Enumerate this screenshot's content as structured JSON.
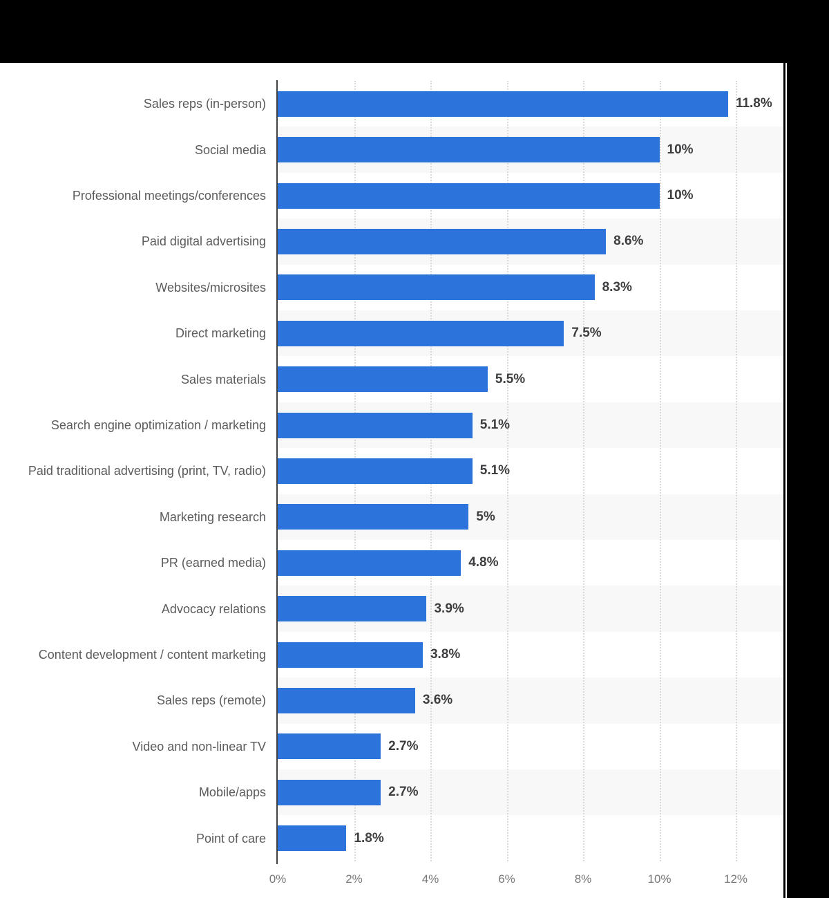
{
  "chart_data": {
    "type": "bar",
    "orientation": "horizontal",
    "title": "",
    "xlabel": "",
    "ylabel": "",
    "categories": [
      "Sales reps (in-person)",
      "Social media",
      "Professional meetings/conferences",
      "Paid digital advertising",
      "Websites/microsites",
      "Direct marketing",
      "Sales materials",
      "Search engine optimization / marketing",
      "Paid traditional advertising (print, TV, radio)",
      "Marketing research",
      "PR (earned media)",
      "Advocacy relations",
      "Content development / content marketing",
      "Sales reps (remote)",
      "Video and non-linear TV",
      "Mobile/apps",
      "Point of care"
    ],
    "values": [
      11.8,
      10,
      10,
      8.6,
      8.3,
      7.5,
      5.5,
      5.1,
      5.1,
      5,
      4.8,
      3.9,
      3.8,
      3.6,
      2.7,
      2.7,
      1.8
    ],
    "value_labels": [
      "11.8%",
      "10%",
      "10%",
      "8.6%",
      "8.3%",
      "7.5%",
      "5.5%",
      "5.1%",
      "5.1%",
      "5%",
      "4.8%",
      "3.9%",
      "3.8%",
      "3.6%",
      "2.7%",
      "2.7%",
      "1.8%"
    ],
    "x_ticks": [
      "0%",
      "2%",
      "4%",
      "6%",
      "8%",
      "10%",
      "12%"
    ],
    "x_tick_values": [
      0,
      2,
      4,
      6,
      8,
      10,
      12
    ],
    "xlim": [
      0,
      13.2
    ],
    "grid": "vertical-dotted",
    "legend": "none",
    "bar_color": "#2d73dc"
  },
  "colors": {
    "frame": "#000000",
    "chart_background": "#ffffff",
    "bar": "#2d73dc",
    "row_stripe": "#f8f8f9",
    "axis_line": "#414141",
    "gridline": "#d8d8da",
    "category_label": "#5a5b5d",
    "value_label": "#3e3e40",
    "tick_label": "#77787a"
  }
}
